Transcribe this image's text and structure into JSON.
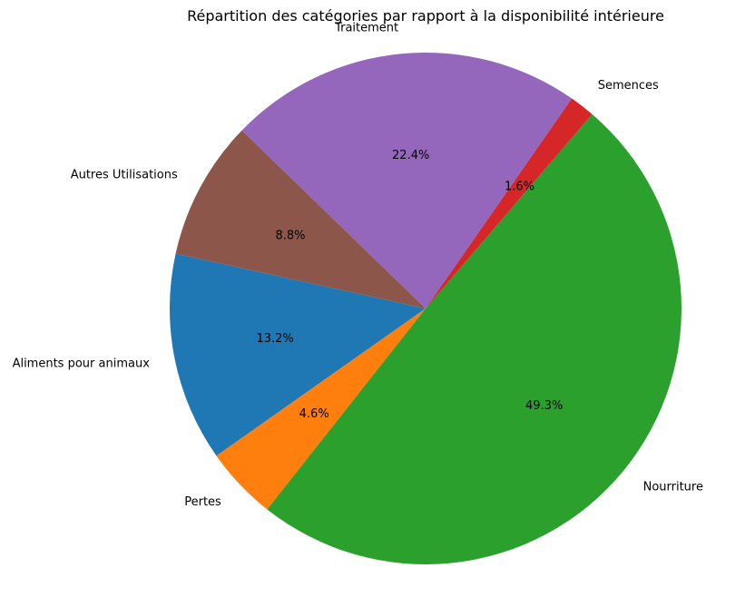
{
  "chart_data": {
    "type": "pie",
    "title": "Répartition des catégories par rapport à la disponibilité intérieure",
    "start_angle_deg": 167.6,
    "direction": "counterclockwise",
    "slices": [
      {
        "label": "Aliments pour animaux",
        "value": 13.2,
        "pct_label": "13.2%",
        "color": "#1f77b4"
      },
      {
        "label": "Pertes",
        "value": 4.6,
        "pct_label": "4.6%",
        "color": "#ff7f0e"
      },
      {
        "label": "Nourriture",
        "value": 49.3,
        "pct_label": "49.3%",
        "color": "#2ca02c"
      },
      {
        "label": "Semences",
        "value": 1.6,
        "pct_label": "1.6%",
        "color": "#d62728"
      },
      {
        "label": "Traitement",
        "value": 22.4,
        "pct_label": "22.4%",
        "color": "#9467bd"
      },
      {
        "label": "Autres Utilisations",
        "value": 8.8,
        "pct_label": "8.8%",
        "color": "#8c564b"
      }
    ]
  }
}
